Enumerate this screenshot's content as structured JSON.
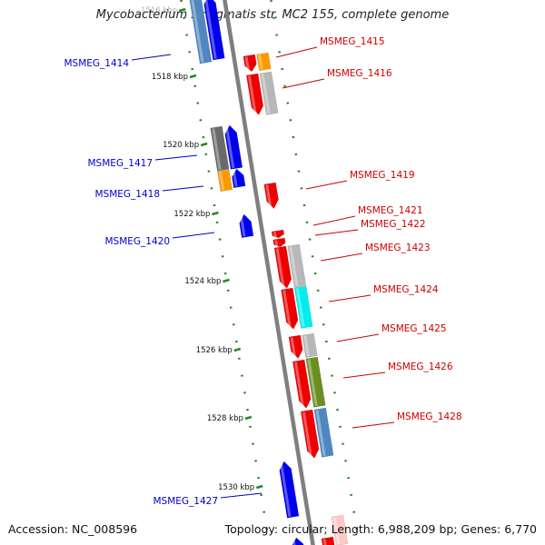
{
  "title": "Mycobacterium smegmatis str. MC2 155, complete genome",
  "footer": {
    "accession": "Accession: NC_008596",
    "topology": "Topology: circular; Length: 6,988,209 bp; Genes: 6,770"
  },
  "colors": {
    "forward_label": "#cc0000",
    "reverse_label": "#0000cc",
    "ruler_tick": "#228b22",
    "backbone": "#7f7f7f"
  },
  "ruler": [
    {
      "label": "1516 kbp",
      "faded": true
    },
    {
      "label": "1518 kbp"
    },
    {
      "label": "1520 kbp"
    },
    {
      "label": "1522 kbp"
    },
    {
      "label": "1524 kbp"
    },
    {
      "label": "1526 kbp"
    },
    {
      "label": "1528 kbp"
    },
    {
      "label": "1530 kbp"
    }
  ],
  "genes": [
    {
      "id": "MSMEG_1414",
      "strand": "reverse",
      "labeled": true
    },
    {
      "id": "MSMEG_1415",
      "strand": "forward",
      "labeled": true
    },
    {
      "id": "MSMEG_1416",
      "strand": "forward",
      "labeled": true
    },
    {
      "id": "MSMEG_1417",
      "strand": "reverse",
      "labeled": true
    },
    {
      "id": "MSMEG_1418",
      "strand": "reverse",
      "labeled": true
    },
    {
      "id": "MSMEG_1419",
      "strand": "forward",
      "labeled": true
    },
    {
      "id": "MSMEG_1420",
      "strand": "reverse",
      "labeled": true
    },
    {
      "id": "MSMEG_1421",
      "strand": "forward",
      "labeled": true
    },
    {
      "id": "MSMEG_1422",
      "strand": "forward",
      "labeled": true
    },
    {
      "id": "MSMEG_1423",
      "strand": "forward",
      "labeled": true
    },
    {
      "id": "MSMEG_1424",
      "strand": "forward",
      "labeled": true
    },
    {
      "id": "MSMEG_1425",
      "strand": "forward",
      "labeled": true
    },
    {
      "id": "MSMEG_1426",
      "strand": "forward",
      "labeled": true
    },
    {
      "id": "MSMEG_1428",
      "strand": "forward",
      "labeled": true
    },
    {
      "id": "MSMEG_1427",
      "strand": "reverse",
      "labeled": true
    }
  ],
  "feature_colors": {
    "gene_forward": "#ee0000",
    "gene_reverse": "#0000ee",
    "cog_gray": "#b8b8b8",
    "cog_darkgray": "#6a6a6a",
    "cog_orange": "#ff9900",
    "cog_cyan": "#00eeee",
    "cog_olive": "#6b8e23",
    "cog_steelblue": "#4f87c0"
  }
}
